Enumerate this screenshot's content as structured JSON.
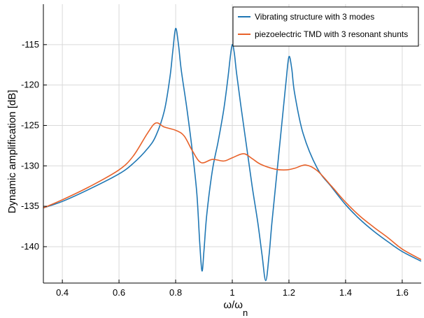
{
  "chart_data": {
    "type": "line",
    "title": "",
    "xlabel": "ω/ω",
    "xlabel_subscript": "n",
    "ylabel": "Dynamic amplification [dB]",
    "xlim": [
      0.333,
      1.667
    ],
    "ylim": [
      -144.5,
      -110
    ],
    "x_ticks": [
      0.4,
      0.6,
      0.8,
      1.0,
      1.2,
      1.4,
      1.6
    ],
    "x_tick_labels": [
      "0.4",
      "0.6",
      "0.8",
      "1",
      "1.2",
      "1.4",
      "1.6"
    ],
    "y_ticks": [
      -115,
      -120,
      -125,
      -130,
      -135,
      -140
    ],
    "y_tick_labels": [
      "-115",
      "-120",
      "-125",
      "-130",
      "-135",
      "-140"
    ],
    "grid": true,
    "legend_position": "top-right",
    "series": [
      {
        "name": "Vibrating structure with 3 modes",
        "color": "#1f77b4",
        "points": [
          [
            0.333,
            -135.2
          ],
          [
            0.4,
            -134.4
          ],
          [
            0.5,
            -132.8
          ],
          [
            0.6,
            -131.0
          ],
          [
            0.65,
            -129.7
          ],
          [
            0.7,
            -127.9
          ],
          [
            0.73,
            -126.3
          ],
          [
            0.76,
            -123.2
          ],
          [
            0.78,
            -119.0
          ],
          [
            0.79,
            -115.8
          ],
          [
            0.8,
            -113.0
          ],
          [
            0.81,
            -115.0
          ],
          [
            0.82,
            -118.2
          ],
          [
            0.84,
            -123.0
          ],
          [
            0.86,
            -128.5
          ],
          [
            0.875,
            -133.5
          ],
          [
            0.885,
            -139.5
          ],
          [
            0.893,
            -143.0
          ],
          [
            0.9,
            -140.5
          ],
          [
            0.91,
            -136.0
          ],
          [
            0.93,
            -130.5
          ],
          [
            0.95,
            -127.0
          ],
          [
            0.97,
            -123.0
          ],
          [
            0.985,
            -119.0
          ],
          [
            0.993,
            -116.5
          ],
          [
            1.0,
            -115.0
          ],
          [
            1.007,
            -116.0
          ],
          [
            1.015,
            -118.5
          ],
          [
            1.03,
            -122.5
          ],
          [
            1.05,
            -127.5
          ],
          [
            1.07,
            -132.5
          ],
          [
            1.09,
            -137.0
          ],
          [
            1.105,
            -141.0
          ],
          [
            1.118,
            -144.2
          ],
          [
            1.13,
            -141.0
          ],
          [
            1.14,
            -137.0
          ],
          [
            1.16,
            -130.0
          ],
          [
            1.18,
            -123.0
          ],
          [
            1.19,
            -119.5
          ],
          [
            1.2,
            -116.5
          ],
          [
            1.21,
            -118.0
          ],
          [
            1.22,
            -121.0
          ],
          [
            1.25,
            -126.0
          ],
          [
            1.3,
            -130.3
          ],
          [
            1.35,
            -132.6
          ],
          [
            1.4,
            -134.8
          ],
          [
            1.45,
            -136.6
          ],
          [
            1.5,
            -138.1
          ],
          [
            1.55,
            -139.4
          ],
          [
            1.6,
            -140.6
          ],
          [
            1.667,
            -141.8
          ]
        ]
      },
      {
        "name": "piezoelectric TMD with 3 resonant shunts",
        "color": "#e8622a",
        "points": [
          [
            0.333,
            -135.2
          ],
          [
            0.4,
            -134.2
          ],
          [
            0.5,
            -132.5
          ],
          [
            0.6,
            -130.5
          ],
          [
            0.65,
            -128.8
          ],
          [
            0.7,
            -126.0
          ],
          [
            0.73,
            -124.7
          ],
          [
            0.76,
            -125.2
          ],
          [
            0.8,
            -125.6
          ],
          [
            0.83,
            -126.3
          ],
          [
            0.86,
            -128.2
          ],
          [
            0.89,
            -129.6
          ],
          [
            0.93,
            -129.2
          ],
          [
            0.97,
            -129.4
          ],
          [
            1.0,
            -129.0
          ],
          [
            1.04,
            -128.5
          ],
          [
            1.07,
            -129.1
          ],
          [
            1.1,
            -129.8
          ],
          [
            1.15,
            -130.4
          ],
          [
            1.19,
            -130.5
          ],
          [
            1.22,
            -130.3
          ],
          [
            1.26,
            -129.9
          ],
          [
            1.3,
            -130.6
          ],
          [
            1.35,
            -132.5
          ],
          [
            1.4,
            -134.5
          ],
          [
            1.45,
            -136.2
          ],
          [
            1.5,
            -137.6
          ],
          [
            1.55,
            -138.9
          ],
          [
            1.6,
            -140.3
          ],
          [
            1.667,
            -141.6
          ]
        ]
      }
    ]
  }
}
